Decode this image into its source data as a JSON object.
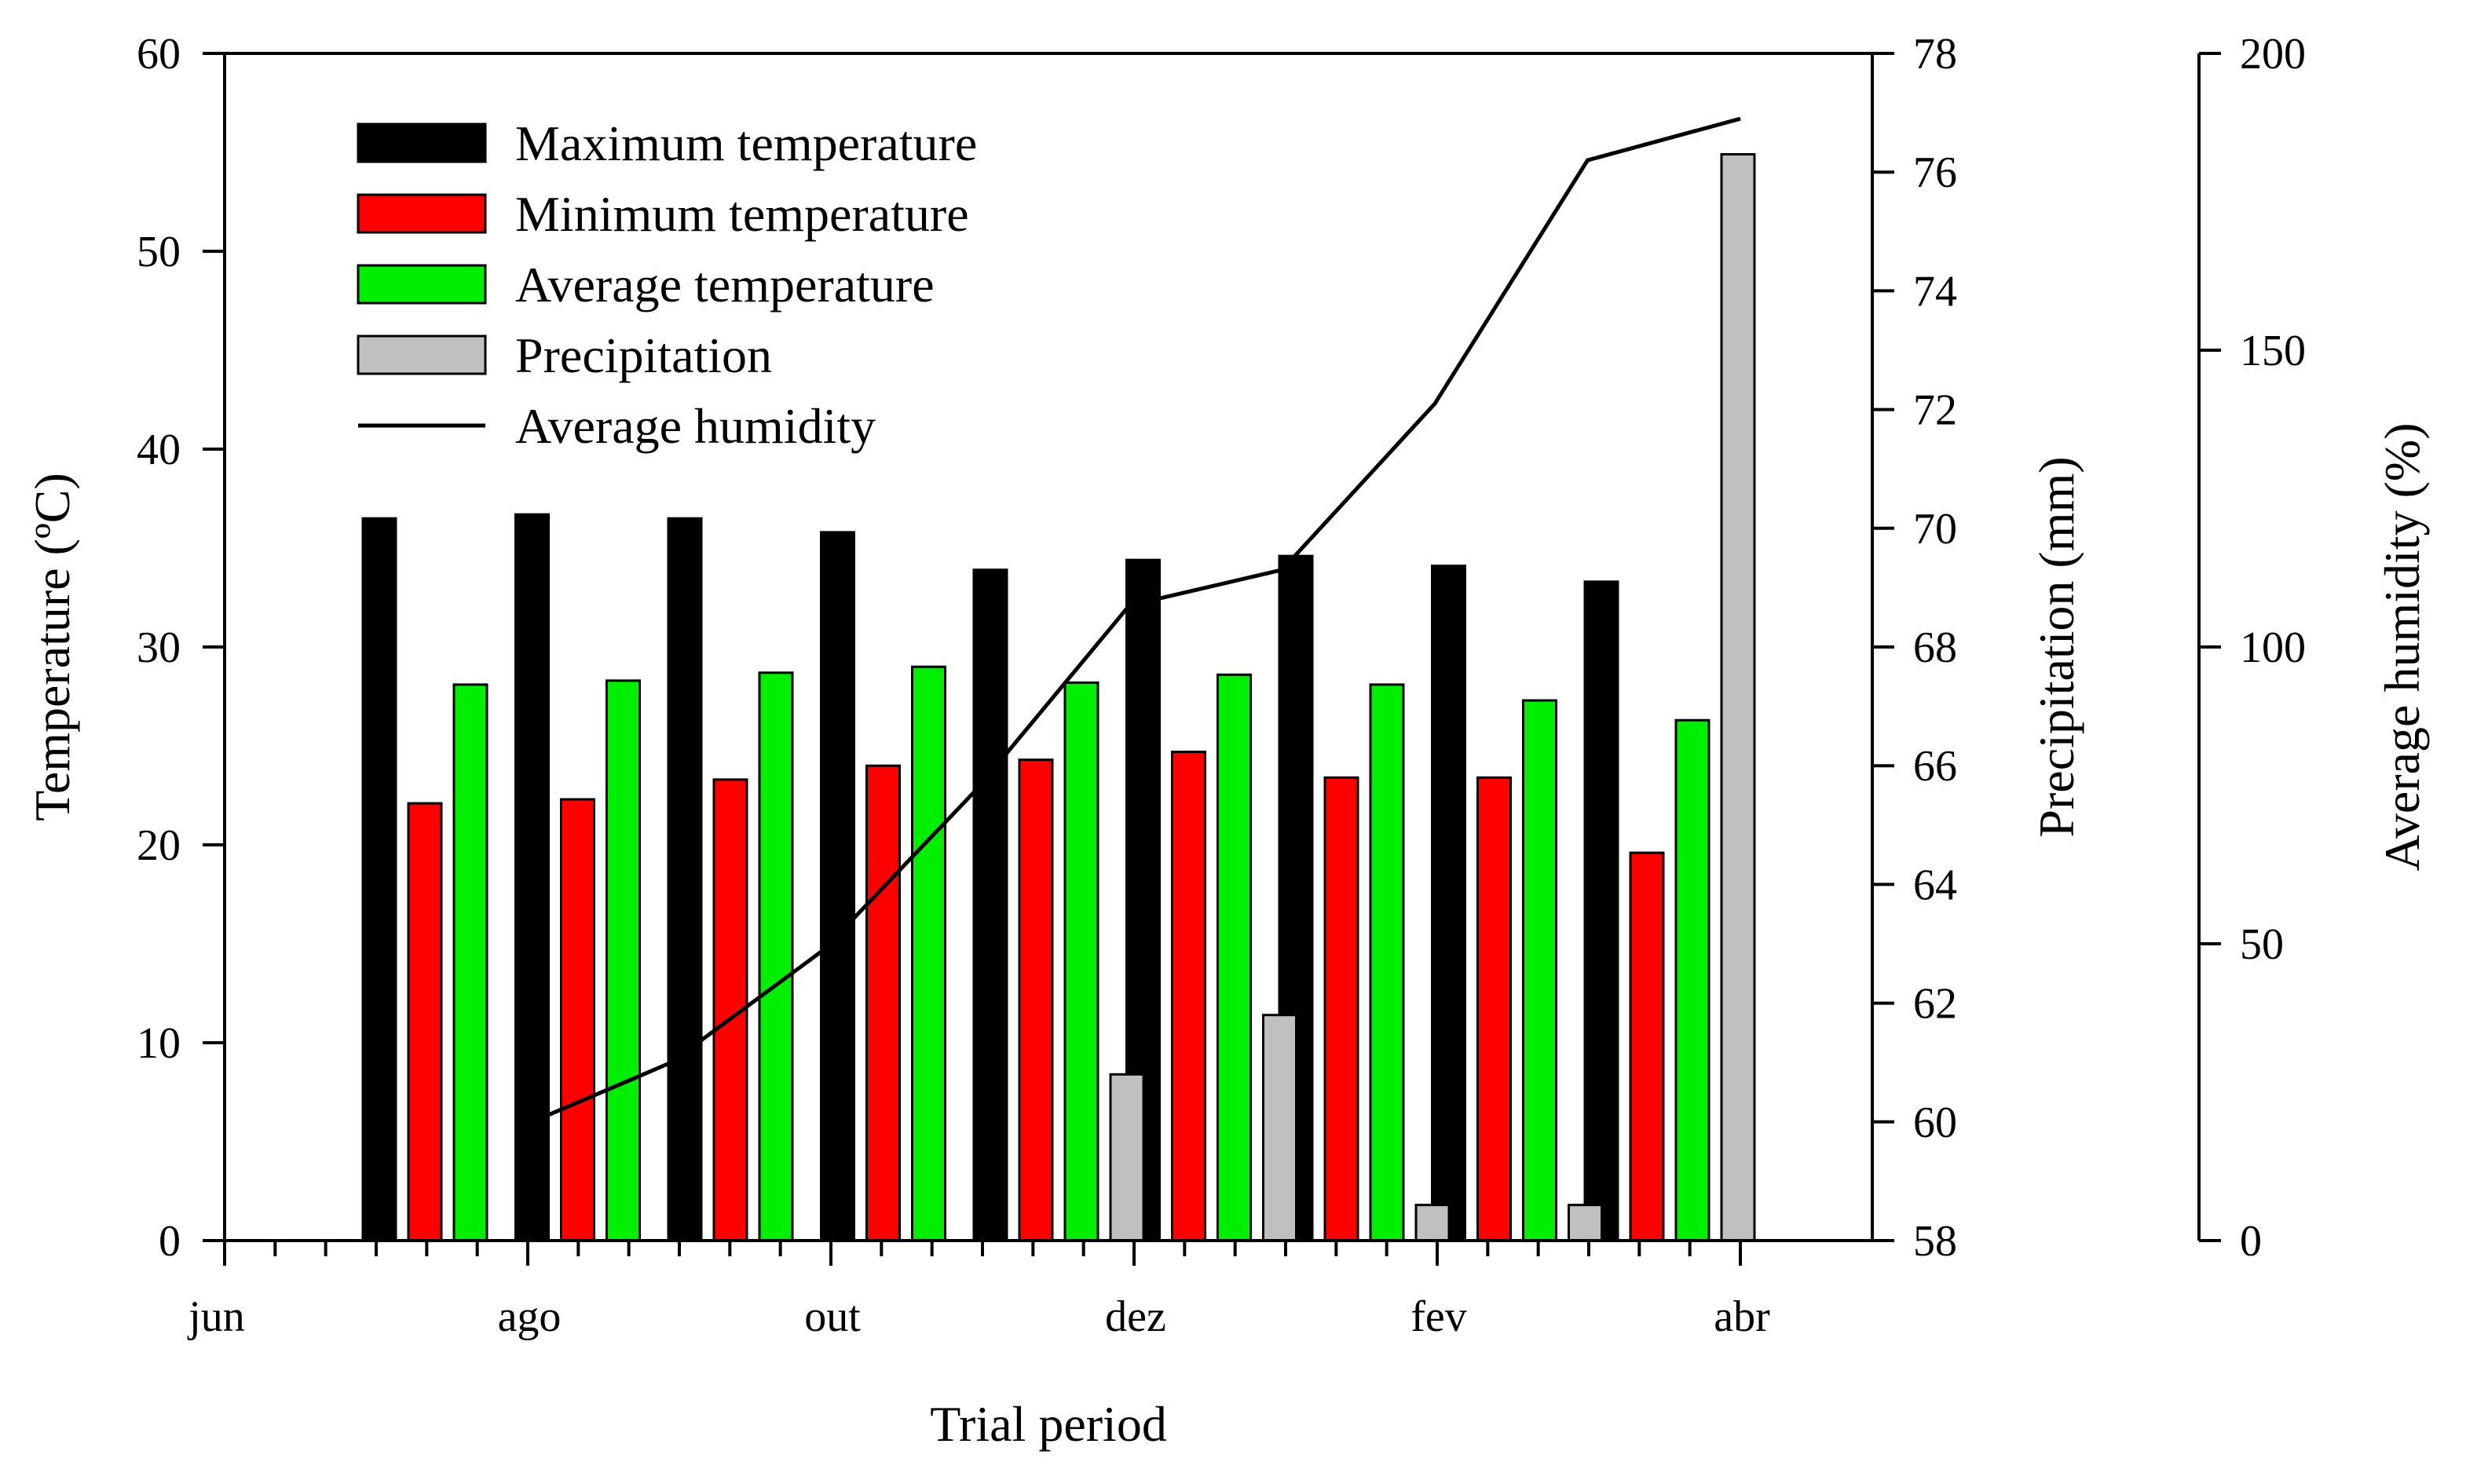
{
  "chart_data": {
    "type": "bar",
    "xlabel": "Trial period",
    "x_ticks": [
      "jun",
      "ago",
      "out",
      "dez",
      "fev",
      "abr"
    ],
    "groups": 9,
    "y_left": {
      "label": "Temperature (ºC)",
      "range": [
        0,
        60
      ],
      "ticks": [
        0,
        10,
        20,
        30,
        40,
        50,
        60
      ]
    },
    "y_right1": {
      "label": "Precipitation (mm)",
      "range": [
        58,
        78
      ],
      "ticks": [
        58,
        60,
        62,
        64,
        66,
        68,
        70,
        72,
        74,
        76,
        78
      ]
    },
    "y_right2": {
      "label": "Average humidity (%)",
      "range": [
        0,
        200
      ],
      "ticks": [
        0,
        50,
        100,
        150,
        200
      ]
    },
    "series": [
      {
        "name": "Maximum temperature",
        "axis": "left",
        "color": "#000000",
        "values": [
          36.5,
          36.7,
          36.5,
          35.8,
          33.9,
          34.4,
          34.6,
          34.1,
          33.3
        ]
      },
      {
        "name": "Minimum temperature",
        "axis": "left",
        "color": "#ff0000",
        "values": [
          22.1,
          22.3,
          23.3,
          24.0,
          24.3,
          24.7,
          23.4,
          23.4,
          19.6
        ]
      },
      {
        "name": "Average temperature",
        "axis": "left",
        "color": "#00ee00",
        "values": [
          28.1,
          28.3,
          28.7,
          29.0,
          28.2,
          28.6,
          28.1,
          27.3,
          26.3
        ]
      },
      {
        "name": "Precipitation",
        "axis": "right1",
        "color": "#c0c0c0",
        "values": [
          0,
          0,
          0,
          0,
          60.8,
          61.8,
          58.6,
          58.6,
          76.3
        ]
      },
      {
        "name": "Average humidity",
        "axis": "right1",
        "type": "line",
        "color": "#000000",
        "points": [
          {
            "group": 0,
            "value": 59.9
          },
          {
            "group": 1,
            "value": 61.0
          },
          {
            "group": 2,
            "value": 62.9
          },
          {
            "group": 3,
            "value": 65.6
          },
          {
            "group": 4,
            "value": 68.7
          },
          {
            "group": 5,
            "value": 69.3
          },
          {
            "group": 6,
            "value": 72.1
          },
          {
            "group": 7,
            "value": 76.2
          },
          {
            "group": 8,
            "value": 76.9
          }
        ]
      }
    ],
    "legend_position": "top-left"
  }
}
